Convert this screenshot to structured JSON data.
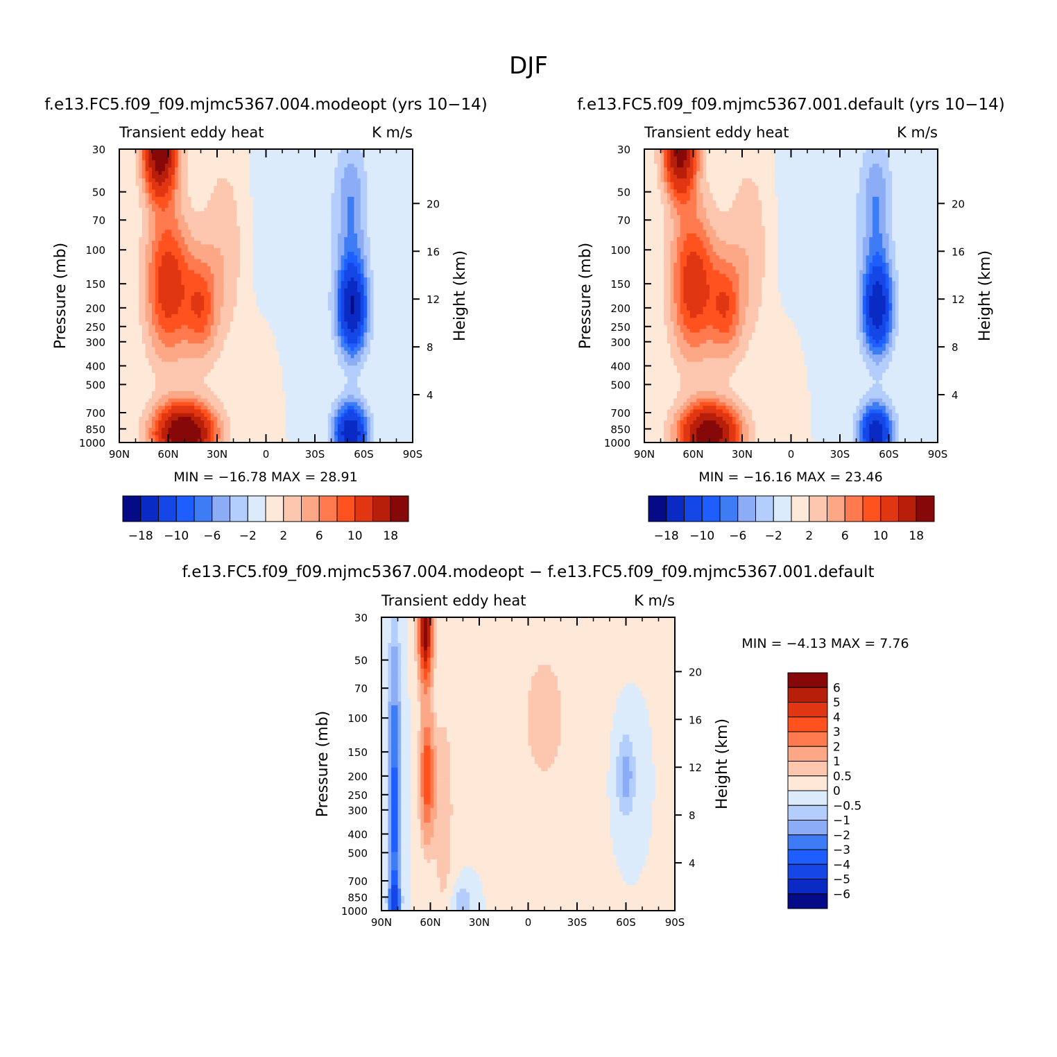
{
  "figure": {
    "title": "DJF"
  },
  "colors": {
    "scale14": [
      "#050a87",
      "#0a2ac4",
      "#1447e6",
      "#1e5eff",
      "#3d7cf5",
      "#8cacf5",
      "#b3cdfc",
      "#dbebfc",
      "#fee8d8",
      "#fcc7ae",
      "#fca786",
      "#ff7a4f",
      "#ff521f",
      "#e03612",
      "#b81f0a",
      "#870808"
    ],
    "diff": [
      "#050a87",
      "#0a2ac4",
      "#1447e6",
      "#1e5eff",
      "#3d7cf5",
      "#8cacf5",
      "#b3cdfc",
      "#dbebfc",
      "#fee8d8",
      "#fcc7ae",
      "#fca786",
      "#ff7a4f",
      "#ff521f",
      "#e03612",
      "#b81f0a",
      "#870808"
    ]
  },
  "chart_data": [
    {
      "type": "heatmap",
      "title": "f.e13.FC5.f09_f09.mjmc5367.004.modeopt (yrs 10−14)",
      "left_label": "Transient eddy heat",
      "right_label": "K m/s",
      "xlabel": "",
      "ylabel": "Pressure (mb)",
      "ylabel_right": "Height (km)",
      "x_ticks": [
        "90N",
        "60N",
        "30N",
        "0",
        "30S",
        "60S",
        "90S"
      ],
      "y_ticks": [
        "30",
        "50",
        "70",
        "100",
        "150",
        "200",
        "250",
        "300",
        "400",
        "500",
        "700",
        "850",
        "1000"
      ],
      "y_ticks_right": [
        "20",
        "16",
        "12",
        "8",
        "4"
      ],
      "y_scale": "log",
      "min_max_text": "MIN = −16.78   MAX =   28.91",
      "min": -16.78,
      "max": 28.91,
      "colorbar_labels": [
        "−18",
        "−10",
        "−6",
        "−2",
        "2",
        "6",
        "10",
        "18"
      ]
    },
    {
      "type": "heatmap",
      "title": "f.e13.FC5.f09_f09.mjmc5367.001.default (yrs 10−14)",
      "left_label": "Transient eddy heat",
      "right_label": "K m/s",
      "xlabel": "",
      "ylabel": "Pressure (mb)",
      "ylabel_right": "Height (km)",
      "x_ticks": [
        "90N",
        "60N",
        "30N",
        "0",
        "30S",
        "60S",
        "90S"
      ],
      "y_ticks": [
        "30",
        "50",
        "70",
        "100",
        "150",
        "200",
        "250",
        "300",
        "400",
        "500",
        "700",
        "850",
        "1000"
      ],
      "y_ticks_right": [
        "20",
        "16",
        "12",
        "8",
        "4"
      ],
      "y_scale": "log",
      "min_max_text": "MIN = −16.16   MAX =   23.46",
      "min": -16.16,
      "max": 23.46,
      "colorbar_labels": [
        "−18",
        "−10",
        "−6",
        "−2",
        "2",
        "6",
        "10",
        "18"
      ]
    },
    {
      "type": "heatmap",
      "title": "f.e13.FC5.f09_f09.mjmc5367.004.modeopt − f.e13.FC5.f09_f09.mjmc5367.001.default",
      "left_label": "Transient eddy heat",
      "right_label": "K m/s",
      "xlabel": "",
      "ylabel": "Pressure (mb)",
      "ylabel_right": "Height (km)",
      "x_ticks": [
        "90N",
        "60N",
        "30N",
        "0",
        "30S",
        "60S",
        "90S"
      ],
      "y_ticks": [
        "30",
        "50",
        "70",
        "100",
        "150",
        "200",
        "250",
        "300",
        "400",
        "500",
        "700",
        "850",
        "1000"
      ],
      "y_ticks_right": [
        "20",
        "16",
        "12",
        "8",
        "4"
      ],
      "y_scale": "log",
      "min_max_text": "MIN =   −4.13   MAX =     7.76",
      "min": -4.13,
      "max": 7.76,
      "colorbar_labels": [
        "6",
        "5",
        "4",
        "3",
        "2",
        "1",
        "0.5",
        "0",
        "−0.5",
        "−1",
        "−2",
        "−3",
        "−4",
        "−5",
        "−6"
      ]
    }
  ]
}
